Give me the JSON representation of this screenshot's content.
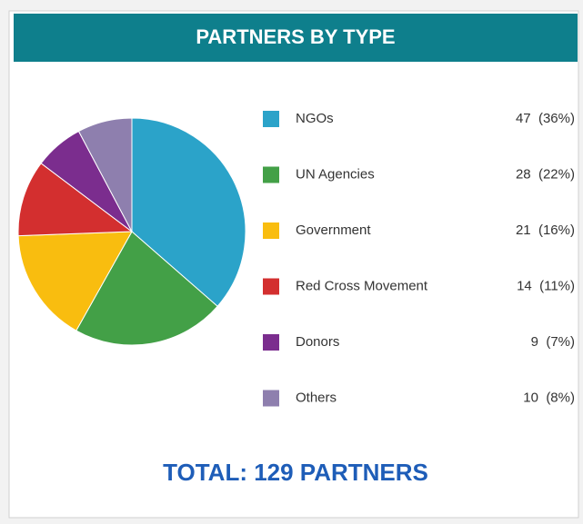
{
  "chart_data": {
    "type": "pie",
    "title": "PARTNERS BY TYPE",
    "categories": [
      "NGOs",
      "UN Agencies",
      "Government",
      "Red Cross Movement",
      "Donors",
      "Others"
    ],
    "values": [
      47,
      28,
      21,
      14,
      9,
      10
    ],
    "value_labels": [
      "47  (36%)",
      "28  (22%)",
      "21  (16%)",
      "14  (11%)",
      "9  (7%)",
      "10  (8%)"
    ],
    "colors": [
      "#2ba3c9",
      "#43a047",
      "#f9bd0f",
      "#d32f2f",
      "#7b2d8e",
      "#8e7fae"
    ],
    "total": "TOTAL: 129 PARTNERS"
  }
}
